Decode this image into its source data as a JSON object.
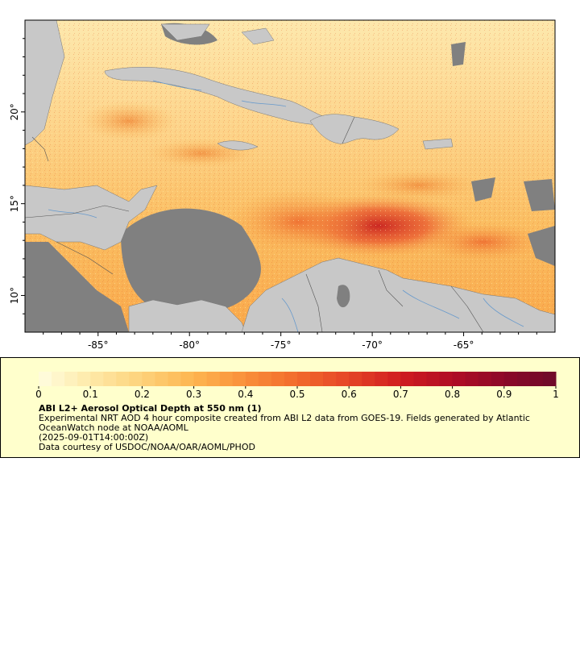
{
  "map": {
    "x_ticks": [
      "-85°",
      "-80°",
      "-75°",
      "-70°",
      "-65°"
    ],
    "y_ticks": [
      "20°",
      "15°",
      "10°"
    ],
    "x_tick_values": [
      -85,
      -80,
      -75,
      -70,
      -65
    ],
    "y_tick_values": [
      20,
      15,
      10
    ],
    "lon_range": [
      -89,
      -60
    ],
    "lat_range": [
      8,
      25
    ],
    "colors": {
      "ocean_low": "#fdeab0",
      "ocean_mid": "#fdb54a",
      "ocean_high": "#e8432a",
      "land": "#c8c8c8",
      "no_data": "#808080",
      "river": "#6699cc",
      "border": "#555555"
    }
  },
  "legend": {
    "tick_labels": [
      "0",
      "0.1",
      "0.2",
      "0.3",
      "0.4",
      "0.5",
      "0.6",
      "0.7",
      "0.8",
      "0.9",
      "1"
    ],
    "range": [
      0,
      1
    ],
    "title": "ABI L2+ Aerosol Optical Depth at 550 nm (1)",
    "description": "Experimental NRT AOD 4 hour composite created from ABI L2 data from GOES-19. Fields generated by Atlantic OceanWatch node at NOAA/AOML",
    "date": "(2025-09-01T14:00:00Z)",
    "credit": "Data courtesy of USDOC/NOAA/OAR/AOML/PHOD",
    "color_stops": [
      "#fffee0",
      "#fee9a8",
      "#fdd27a",
      "#fdb550",
      "#f98f3a",
      "#f26a2c",
      "#e54427",
      "#d01c20",
      "#b00d24",
      "#8c0828",
      "#6e0a2a"
    ]
  }
}
